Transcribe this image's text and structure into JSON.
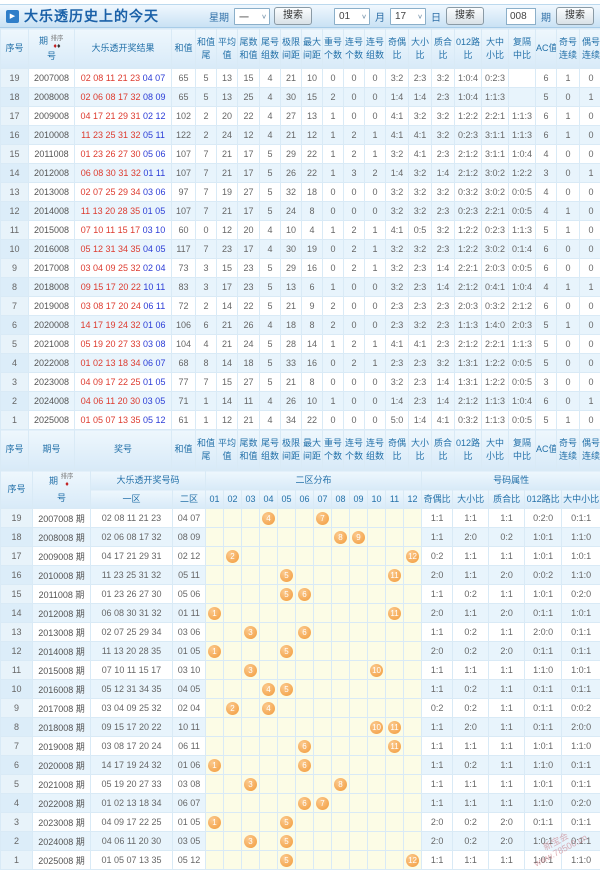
{
  "header": {
    "title": "大乐透历史上的今天",
    "week_label": "星期",
    "week_value": "一",
    "search_label": "搜索",
    "month_value": "01",
    "month_label": "月",
    "day_value": "17",
    "day_label": "日",
    "issue_value": "008",
    "issue_label": "期"
  },
  "icons": {
    "title_arrow": "▶",
    "dropdown": "∨",
    "sort_asc_diamond": "♦",
    "sort_desc_diamond": "♦"
  },
  "colors": {
    "accent_blue": "#1b61a8",
    "header_text": "#2471a9",
    "front_zone_red": "#dd3b2f",
    "back_zone_blue": "#2b3cd6",
    "row_stripe": "#e8f4fc",
    "zone2_bg": "#fcfce6",
    "ball_orange": "#f29b3b"
  },
  "table1": {
    "sort_label": "排序",
    "columns": [
      {
        "l1": "序号"
      },
      {
        "l1": "期",
        "l2": "号",
        "sort": true
      },
      {
        "l1": "大乐透开奖结果"
      },
      {
        "l1": "和值"
      },
      {
        "l1": "和值",
        "l2": "尾"
      },
      {
        "l1": "平均",
        "l2": "值"
      },
      {
        "l1": "尾数",
        "l2": "和值"
      },
      {
        "l1": "尾号",
        "l2": "组数"
      },
      {
        "l1": "极限",
        "l2": "间距"
      },
      {
        "l1": "最大",
        "l2": "间距"
      },
      {
        "l1": "重号",
        "l2": "个数"
      },
      {
        "l1": "连号",
        "l2": "个数"
      },
      {
        "l1": "连号",
        "l2": "组数"
      },
      {
        "l1": "奇偶",
        "l2": "比"
      },
      {
        "l1": "大小",
        "l2": "比"
      },
      {
        "l1": "质合",
        "l2": "比"
      },
      {
        "l1": "012路",
        "l2": "比"
      },
      {
        "l1": "大中",
        "l2": "小比"
      },
      {
        "l1": "复隔",
        "l2": "中比"
      },
      {
        "l1": "AC值"
      },
      {
        "l1": "奇号",
        "l2": "连续"
      },
      {
        "l1": "偶号",
        "l2": "连续"
      }
    ],
    "footer_columns": [
      {
        "l1": "序号"
      },
      {
        "l1": "期号"
      },
      {
        "l1": "奖号"
      },
      {
        "l1": "和值"
      },
      {
        "l1": "和值",
        "l2": "尾"
      },
      {
        "l1": "平均",
        "l2": "值"
      },
      {
        "l1": "尾数",
        "l2": "和值"
      },
      {
        "l1": "尾号",
        "l2": "组数"
      },
      {
        "l1": "极限",
        "l2": "间距"
      },
      {
        "l1": "最大",
        "l2": "间距"
      },
      {
        "l1": "重号",
        "l2": "个数"
      },
      {
        "l1": "连号",
        "l2": "个数"
      },
      {
        "l1": "连号",
        "l2": "组数"
      },
      {
        "l1": "奇偶",
        "l2": "比"
      },
      {
        "l1": "大小",
        "l2": "比"
      },
      {
        "l1": "质合",
        "l2": "比"
      },
      {
        "l1": "012路",
        "l2": "比"
      },
      {
        "l1": "大中",
        "l2": "小比"
      },
      {
        "l1": "复隔",
        "l2": "中比"
      },
      {
        "l1": "AC值"
      },
      {
        "l1": "奇号",
        "l2": "连续"
      },
      {
        "l1": "偶号",
        "l2": "连续"
      }
    ],
    "rows": [
      {
        "no": "19",
        "issue": "2007008",
        "front": "02 08 11 21 23",
        "back": "04 07",
        "v": [
          "65",
          "5",
          "13",
          "15",
          "4",
          "21",
          "10",
          "0",
          "0",
          "0",
          "3:2",
          "2:3",
          "3:2",
          "1:0:4",
          "0:2:3",
          "",
          "6",
          "1",
          "0"
        ]
      },
      {
        "no": "18",
        "issue": "2008008",
        "front": "02 06 08 17 32",
        "back": "08 09",
        "v": [
          "65",
          "5",
          "13",
          "25",
          "4",
          "30",
          "15",
          "2",
          "0",
          "0",
          "1:4",
          "1:4",
          "2:3",
          "1:0:4",
          "1:1:3",
          "",
          "5",
          "0",
          "1"
        ]
      },
      {
        "no": "17",
        "issue": "2009008",
        "front": "04 17 21 29 31",
        "back": "02 12",
        "v": [
          "102",
          "2",
          "20",
          "22",
          "4",
          "27",
          "13",
          "1",
          "0",
          "0",
          "4:1",
          "3:2",
          "3:2",
          "1:2:2",
          "2:2:1",
          "1:1:3",
          "6",
          "1",
          "0"
        ]
      },
      {
        "no": "16",
        "issue": "2010008",
        "front": "11 23 25 31 32",
        "back": "05 11",
        "v": [
          "122",
          "2",
          "24",
          "12",
          "4",
          "21",
          "12",
          "1",
          "2",
          "1",
          "4:1",
          "4:1",
          "3:2",
          "0:2:3",
          "3:1:1",
          "1:1:3",
          "6",
          "1",
          "0"
        ]
      },
      {
        "no": "15",
        "issue": "2011008",
        "front": "01 23 26 27 30",
        "back": "05 06",
        "v": [
          "107",
          "7",
          "21",
          "17",
          "5",
          "29",
          "22",
          "1",
          "2",
          "1",
          "3:2",
          "4:1",
          "2:3",
          "2:1:2",
          "3:1:1",
          "1:0:4",
          "4",
          "0",
          "0"
        ]
      },
      {
        "no": "14",
        "issue": "2012008",
        "front": "06 08 30 31 32",
        "back": "01 11",
        "v": [
          "107",
          "7",
          "21",
          "17",
          "5",
          "26",
          "22",
          "1",
          "3",
          "2",
          "1:4",
          "3:2",
          "1:4",
          "2:1:2",
          "3:0:2",
          "1:2:2",
          "3",
          "0",
          "1"
        ]
      },
      {
        "no": "13",
        "issue": "2013008",
        "front": "02 07 25 29 34",
        "back": "03 06",
        "v": [
          "97",
          "7",
          "19",
          "27",
          "5",
          "32",
          "18",
          "0",
          "0",
          "0",
          "3:2",
          "3:2",
          "3:2",
          "0:3:2",
          "3:0:2",
          "0:0:5",
          "4",
          "0",
          "0"
        ]
      },
      {
        "no": "12",
        "issue": "2014008",
        "front": "11 13 20 28 35",
        "back": "01 05",
        "v": [
          "107",
          "7",
          "21",
          "17",
          "5",
          "24",
          "8",
          "0",
          "0",
          "0",
          "3:2",
          "3:2",
          "2:3",
          "0:2:3",
          "2:2:1",
          "0:0:5",
          "4",
          "1",
          "0"
        ]
      },
      {
        "no": "11",
        "issue": "2015008",
        "front": "07 10 11 15 17",
        "back": "03 10",
        "v": [
          "60",
          "0",
          "12",
          "20",
          "4",
          "10",
          "4",
          "1",
          "2",
          "1",
          "4:1",
          "0:5",
          "3:2",
          "1:2:2",
          "0:2:3",
          "1:1:3",
          "5",
          "1",
          "0"
        ]
      },
      {
        "no": "10",
        "issue": "2016008",
        "front": "05 12 31 34 35",
        "back": "04 05",
        "v": [
          "117",
          "7",
          "23",
          "17",
          "4",
          "30",
          "19",
          "0",
          "2",
          "1",
          "3:2",
          "3:2",
          "2:3",
          "1:2:2",
          "3:0:2",
          "0:1:4",
          "6",
          "0",
          "0"
        ]
      },
      {
        "no": "9",
        "issue": "2017008",
        "front": "03 04 09 25 32",
        "back": "02 04",
        "v": [
          "73",
          "3",
          "15",
          "23",
          "5",
          "29",
          "16",
          "0",
          "2",
          "1",
          "3:2",
          "2:3",
          "1:4",
          "2:2:1",
          "2:0:3",
          "0:0:5",
          "6",
          "0",
          "0"
        ]
      },
      {
        "no": "8",
        "issue": "2018008",
        "front": "09 15 17 20 22",
        "back": "10 11",
        "v": [
          "83",
          "3",
          "17",
          "23",
          "5",
          "13",
          "6",
          "1",
          "0",
          "0",
          "3:2",
          "2:3",
          "1:4",
          "2:1:2",
          "0:4:1",
          "1:0:4",
          "4",
          "1",
          "1"
        ]
      },
      {
        "no": "7",
        "issue": "2019008",
        "front": "03 08 17 20 24",
        "back": "06 11",
        "v": [
          "72",
          "2",
          "14",
          "22",
          "5",
          "21",
          "9",
          "2",
          "0",
          "0",
          "2:3",
          "2:3",
          "2:3",
          "2:0:3",
          "0:3:2",
          "2:1:2",
          "6",
          "0",
          "0"
        ]
      },
      {
        "no": "6",
        "issue": "2020008",
        "front": "14 17 19 24 32",
        "back": "01 06",
        "v": [
          "106",
          "6",
          "21",
          "26",
          "4",
          "18",
          "8",
          "2",
          "0",
          "0",
          "2:3",
          "3:2",
          "2:3",
          "1:1:3",
          "1:4:0",
          "2:0:3",
          "5",
          "1",
          "0"
        ]
      },
      {
        "no": "5",
        "issue": "2021008",
        "front": "05 19 20 27 33",
        "back": "03 08",
        "v": [
          "104",
          "4",
          "21",
          "24",
          "5",
          "28",
          "14",
          "1",
          "2",
          "1",
          "4:1",
          "4:1",
          "2:3",
          "2:1:2",
          "2:2:1",
          "1:1:3",
          "5",
          "0",
          "0"
        ]
      },
      {
        "no": "4",
        "issue": "2022008",
        "front": "01 02 13 18 34",
        "back": "06 07",
        "v": [
          "68",
          "8",
          "14",
          "18",
          "5",
          "33",
          "16",
          "0",
          "2",
          "1",
          "2:3",
          "2:3",
          "3:2",
          "1:3:1",
          "1:2:2",
          "0:0:5",
          "5",
          "0",
          "0"
        ]
      },
      {
        "no": "3",
        "issue": "2023008",
        "front": "04 09 17 22 25",
        "back": "01 05",
        "v": [
          "77",
          "7",
          "15",
          "27",
          "5",
          "21",
          "8",
          "0",
          "0",
          "0",
          "3:2",
          "2:3",
          "1:4",
          "1:3:1",
          "1:2:2",
          "0:0:5",
          "3",
          "0",
          "0"
        ]
      },
      {
        "no": "2",
        "issue": "2024008",
        "front": "04 06 11 20 30",
        "back": "03 05",
        "v": [
          "71",
          "1",
          "14",
          "11",
          "4",
          "26",
          "10",
          "1",
          "0",
          "0",
          "1:4",
          "2:3",
          "1:4",
          "2:1:2",
          "1:1:3",
          "1:0:4",
          "6",
          "0",
          "1"
        ]
      },
      {
        "no": "1",
        "issue": "2025008",
        "front": "01 05 07 13 35",
        "back": "05 12",
        "v": [
          "61",
          "1",
          "12",
          "21",
          "4",
          "34",
          "22",
          "0",
          "0",
          "0",
          "5:0",
          "1:4",
          "4:1",
          "0:3:2",
          "1:1:3",
          "0:0:5",
          "5",
          "1",
          "0"
        ]
      }
    ]
  },
  "table2": {
    "seq_label": "序号",
    "issue_l1": "期",
    "issue_l2": "号",
    "sort_label": "排序",
    "group_result": "大乐透开奖号码",
    "group_dist": "二区分布",
    "group_attrs": "号码属性",
    "zone1_label": "一区",
    "zone2_label": "二区",
    "dist_headers": [
      "01",
      "02",
      "03",
      "04",
      "05",
      "06",
      "07",
      "08",
      "09",
      "10",
      "11",
      "12"
    ],
    "attr_headers": [
      "奇偶比",
      "大小比",
      "质合比",
      "012路比",
      "大中小比"
    ],
    "rows": [
      {
        "no": "19",
        "issue": "2007008 期",
        "z1": "02 08 11 21 23",
        "z2": "04 07",
        "balls": [
          4,
          7
        ],
        "attrs": [
          "1:1",
          "1:1",
          "1:1",
          "0:2:0",
          "0:1:1"
        ]
      },
      {
        "no": "18",
        "issue": "2008008 期",
        "z1": "02 06 08 17 32",
        "z2": "08 09",
        "balls": [
          8,
          9
        ],
        "attrs": [
          "1:1",
          "2:0",
          "0:2",
          "1:0:1",
          "1:1:0"
        ]
      },
      {
        "no": "17",
        "issue": "2009008 期",
        "z1": "04 17 21 29 31",
        "z2": "02 12",
        "balls": [
          2,
          12
        ],
        "attrs": [
          "0:2",
          "1:1",
          "1:1",
          "1:0:1",
          "1:0:1"
        ]
      },
      {
        "no": "16",
        "issue": "2010008 期",
        "z1": "11 23 25 31 32",
        "z2": "05 11",
        "balls": [
          5,
          11
        ],
        "attrs": [
          "2:0",
          "1:1",
          "2:0",
          "0:0:2",
          "1:1:0"
        ]
      },
      {
        "no": "15",
        "issue": "2011008 期",
        "z1": "01 23 26 27 30",
        "z2": "05 06",
        "balls": [
          5,
          6
        ],
        "attrs": [
          "1:1",
          "0:2",
          "1:1",
          "1:0:1",
          "0:2:0"
        ]
      },
      {
        "no": "14",
        "issue": "2012008 期",
        "z1": "06 08 30 31 32",
        "z2": "01 11",
        "balls": [
          1,
          11
        ],
        "attrs": [
          "2:0",
          "1:1",
          "2:0",
          "0:1:1",
          "1:0:1"
        ]
      },
      {
        "no": "13",
        "issue": "2013008 期",
        "z1": "02 07 25 29 34",
        "z2": "03 06",
        "balls": [
          3,
          6
        ],
        "attrs": [
          "1:1",
          "0:2",
          "1:1",
          "2:0:0",
          "0:1:1"
        ]
      },
      {
        "no": "12",
        "issue": "2014008 期",
        "z1": "11 13 20 28 35",
        "z2": "01 05",
        "balls": [
          1,
          5
        ],
        "attrs": [
          "2:0",
          "0:2",
          "2:0",
          "0:1:1",
          "0:1:1"
        ]
      },
      {
        "no": "11",
        "issue": "2015008 期",
        "z1": "07 10 11 15 17",
        "z2": "03 10",
        "balls": [
          3,
          10
        ],
        "attrs": [
          "1:1",
          "1:1",
          "1:1",
          "1:1:0",
          "1:0:1"
        ]
      },
      {
        "no": "10",
        "issue": "2016008 期",
        "z1": "05 12 31 34 35",
        "z2": "04 05",
        "balls": [
          4,
          5
        ],
        "attrs": [
          "1:1",
          "0:2",
          "1:1",
          "0:1:1",
          "0:1:1"
        ]
      },
      {
        "no": "9",
        "issue": "2017008 期",
        "z1": "03 04 09 25 32",
        "z2": "02 04",
        "balls": [
          2,
          4
        ],
        "attrs": [
          "0:2",
          "0:2",
          "1:1",
          "0:1:1",
          "0:0:2"
        ]
      },
      {
        "no": "8",
        "issue": "2018008 期",
        "z1": "09 15 17 20 22",
        "z2": "10 11",
        "balls": [
          10,
          11
        ],
        "attrs": [
          "1:1",
          "2:0",
          "1:1",
          "0:1:1",
          "2:0:0"
        ]
      },
      {
        "no": "7",
        "issue": "2019008 期",
        "z1": "03 08 17 20 24",
        "z2": "06 11",
        "balls": [
          6,
          11
        ],
        "attrs": [
          "1:1",
          "1:1",
          "1:1",
          "1:0:1",
          "1:1:0"
        ]
      },
      {
        "no": "6",
        "issue": "2020008 期",
        "z1": "14 17 19 24 32",
        "z2": "01 06",
        "balls": [
          1,
          6
        ],
        "attrs": [
          "1:1",
          "0:2",
          "1:1",
          "1:1:0",
          "0:1:1"
        ]
      },
      {
        "no": "5",
        "issue": "2021008 期",
        "z1": "05 19 20 27 33",
        "z2": "03 08",
        "balls": [
          3,
          8
        ],
        "attrs": [
          "1:1",
          "1:1",
          "1:1",
          "1:0:1",
          "0:1:1"
        ]
      },
      {
        "no": "4",
        "issue": "2022008 期",
        "z1": "01 02 13 18 34",
        "z2": "06 07",
        "balls": [
          6,
          7
        ],
        "attrs": [
          "1:1",
          "1:1",
          "1:1",
          "1:1:0",
          "0:2:0"
        ]
      },
      {
        "no": "3",
        "issue": "2023008 期",
        "z1": "04 09 17 22 25",
        "z2": "01 05",
        "balls": [
          1,
          5
        ],
        "attrs": [
          "2:0",
          "0:2",
          "2:0",
          "0:1:1",
          "0:1:1"
        ]
      },
      {
        "no": "2",
        "issue": "2024008 期",
        "z1": "04 06 11 20 30",
        "z2": "03 05",
        "balls": [
          3,
          5
        ],
        "attrs": [
          "2:0",
          "0:2",
          "2:0",
          "1:0:1",
          "0:1:1"
        ]
      },
      {
        "no": "1",
        "issue": "2025008 期",
        "z1": "01 05 07 13 35",
        "z2": "05 12",
        "balls": [
          5,
          12
        ],
        "attrs": [
          "1:1",
          "1:1",
          "1:1",
          "1:0:1",
          "1:1:0"
        ]
      }
    ]
  },
  "watermark": {
    "line1": "新宝会",
    "line2": "www.78500.cn"
  }
}
